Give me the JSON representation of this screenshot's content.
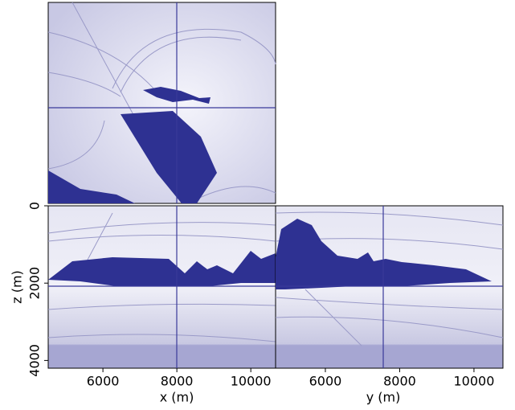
{
  "chart_data": {
    "type": "cube",
    "x_label": "x (m)",
    "y_label": "y (m)",
    "z_label": "z (m)",
    "xlim": [
      4520,
      10670
    ],
    "xticks": [
      6000,
      8000,
      10000
    ],
    "ylim": [
      4660,
      10780
    ],
    "yticks": [
      6000,
      8000,
      10000
    ],
    "zlim": [
      0,
      4200
    ],
    "zticks": [
      0,
      2000,
      4000
    ]
  }
}
